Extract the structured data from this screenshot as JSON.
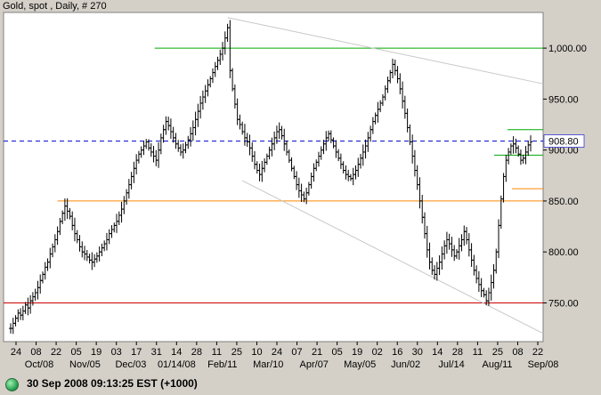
{
  "header": {
    "title": "Gold, spot , Daily, # 270"
  },
  "status": {
    "text": "30 Sep 2008 09:13:25  EST (+1000)",
    "indicator_color": "#1f9a4a"
  },
  "chart_data": {
    "type": "ohlc",
    "title": "Gold, spot , Daily, # 270",
    "ylim": [
      712,
      1035
    ],
    "y_ticks": [
      {
        "value": 1000,
        "label": "1,000.00"
      },
      {
        "value": 950,
        "label": "950.00"
      },
      {
        "value": 900,
        "label": "900.00"
      },
      {
        "value": 850,
        "label": "850.00"
      },
      {
        "value": 800,
        "label": "800.00"
      },
      {
        "value": 750,
        "label": "750.00"
      }
    ],
    "day_ticks": [
      "24",
      "08",
      "22",
      "05",
      "19",
      "03",
      "17",
      "31",
      "14",
      "28",
      "11",
      "25",
      "10",
      "24",
      "07",
      "21",
      "05",
      "19",
      "02",
      "16",
      "30",
      "14",
      "28",
      "11",
      "25",
      "08",
      "22"
    ],
    "month_labels": [
      "Oct/08",
      "Nov/05",
      "Dec/03",
      "01/14/08",
      "Feb/11",
      "Mar/10",
      "Apr/07",
      "May/05",
      "Jun/02",
      "Jul/14",
      "Aug/11",
      "Sep/08"
    ],
    "current_price": {
      "value": 908.8,
      "label": "908.80",
      "color": "#0000cc"
    },
    "lines": [
      {
        "name": "resistance",
        "y": 1000,
        "from": 0.28,
        "to": 1.0,
        "color": "#00aa00"
      },
      {
        "name": "support-850",
        "y": 850,
        "from": 0.1,
        "to": 1.0,
        "color": "#ff8800"
      },
      {
        "name": "support-750",
        "y": 750,
        "from": 0.0,
        "to": 1.0,
        "color": "#cc0000"
      }
    ],
    "series": [
      {
        "values": [
          725,
          730,
          735,
          740,
          738,
          742,
          748,
          745,
          752,
          756,
          760,
          765,
          772,
          778,
          785,
          790,
          798,
          805,
          812,
          820,
          830,
          838,
          845,
          840,
          835,
          826,
          818,
          812,
          805,
          800,
          798,
          795,
          792,
          790,
          793,
          796,
          800,
          804,
          808,
          812,
          818,
          822,
          826,
          830,
          836,
          842,
          850,
          858,
          866,
          874,
          882,
          890,
          896,
          900,
          904,
          908,
          902,
          898,
          894,
          890,
          900,
          912,
          920,
          928,
          924,
          918,
          912,
          906,
          902,
          898,
          900,
          905,
          910,
          916,
          922,
          930,
          938,
          946,
          952,
          958,
          964,
          970,
          976,
          982,
          988,
          994,
          1000,
          1010,
          1020,
          978,
          960,
          945,
          930,
          925,
          918,
          912,
          908,
          902,
          894,
          886,
          880,
          876,
          882,
          888,
          894,
          900,
          906,
          912,
          918,
          920,
          914,
          906,
          898,
          890,
          882,
          874,
          866,
          860,
          856,
          852,
          858,
          866,
          874,
          882,
          888,
          894,
          900,
          906,
          912,
          916,
          910,
          904,
          898,
          892,
          886,
          880,
          876,
          874,
          872,
          876,
          880,
          886,
          892,
          898,
          904,
          912,
          920,
          928,
          934,
          940,
          946,
          952,
          960,
          968,
          976,
          984,
          978,
          970,
          960,
          948,
          936,
          922,
          908,
          894,
          880,
          866,
          850,
          834,
          818,
          802,
          790,
          782,
          778,
          784,
          790,
          798,
          806,
          812,
          808,
          802,
          796,
          800,
          806,
          812,
          820,
          812,
          802,
          792,
          782,
          774,
          768,
          762,
          758,
          752,
          760,
          770,
          782,
          800,
          826,
          852,
          874,
          890,
          898,
          904,
          906,
          902,
          896,
          890,
          892,
          898,
          905,
          908
        ]
      }
    ]
  }
}
